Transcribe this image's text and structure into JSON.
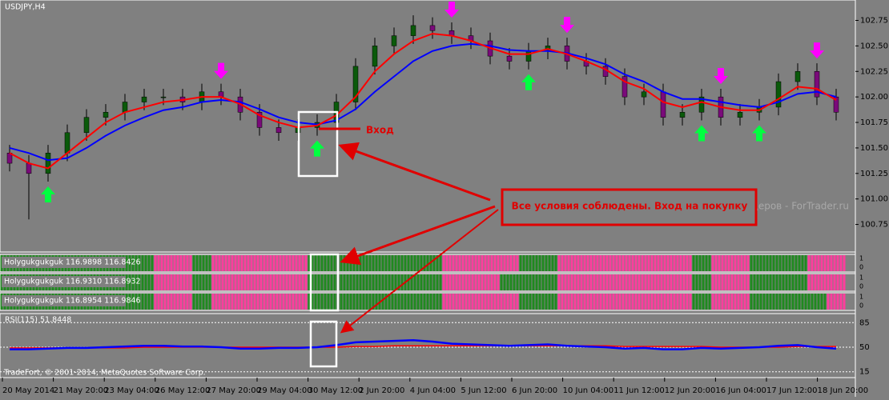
{
  "chart_data": {
    "type": "candlestick",
    "title": "USDJPY,H4",
    "ylim": [
      100.48,
      102.95
    ],
    "yticks": [
      {
        "value": 102.75,
        "label": "102.75"
      },
      {
        "value": 102.5,
        "label": "102.50"
      },
      {
        "value": 102.25,
        "label": "102.25"
      },
      {
        "value": 102.0,
        "label": "102.00"
      },
      {
        "value": 101.75,
        "label": "101.75"
      },
      {
        "value": 101.5,
        "label": "101.50"
      },
      {
        "value": 101.25,
        "label": "101.25"
      },
      {
        "value": 101.0,
        "label": "101.00"
      },
      {
        "value": 100.75,
        "label": "100.75"
      }
    ],
    "candles": {
      "open": [
        101.45,
        101.35,
        101.25,
        101.45,
        101.65,
        101.8,
        101.85,
        101.95,
        102.0,
        102.0,
        101.95,
        102.05,
        102.0,
        101.85,
        101.7,
        101.65,
        101.7,
        101.75,
        101.95,
        102.3,
        102.5,
        102.6,
        102.7,
        102.65,
        102.6,
        102.55,
        102.4,
        102.35,
        102.45,
        102.5,
        102.35,
        102.3,
        102.2,
        102.0,
        102.05,
        101.8,
        101.85,
        102.0,
        101.8,
        101.85,
        101.9,
        102.15,
        102.25,
        102.0
      ],
      "high": [
        101.53,
        101.43,
        101.53,
        101.73,
        101.88,
        101.93,
        102.03,
        102.08,
        102.08,
        102.08,
        102.13,
        102.13,
        102.08,
        101.93,
        101.78,
        101.78,
        101.83,
        102.03,
        102.38,
        102.58,
        102.68,
        102.8,
        102.78,
        102.73,
        102.68,
        102.63,
        102.48,
        102.53,
        102.58,
        102.58,
        102.43,
        102.38,
        102.28,
        102.13,
        102.13,
        101.93,
        102.08,
        102.08,
        101.93,
        101.98,
        102.23,
        102.33,
        102.33,
        102.08
      ],
      "low": [
        101.27,
        100.8,
        101.17,
        101.37,
        101.57,
        101.72,
        101.77,
        101.87,
        101.92,
        101.87,
        101.87,
        101.92,
        101.77,
        101.62,
        101.57,
        101.57,
        101.62,
        101.67,
        101.87,
        102.22,
        102.42,
        102.52,
        102.57,
        102.52,
        102.47,
        102.32,
        102.27,
        102.27,
        102.37,
        102.27,
        102.22,
        102.12,
        101.92,
        101.92,
        101.72,
        101.72,
        101.77,
        101.72,
        101.72,
        101.77,
        101.82,
        102.07,
        101.92,
        101.77
      ],
      "close": [
        101.35,
        101.25,
        101.45,
        101.65,
        101.8,
        101.85,
        101.95,
        102.0,
        102.0,
        101.95,
        102.05,
        102.0,
        101.85,
        101.7,
        101.65,
        101.7,
        101.75,
        101.95,
        102.3,
        102.5,
        102.6,
        102.7,
        102.65,
        102.6,
        102.55,
        102.4,
        102.35,
        102.45,
        102.5,
        102.35,
        102.3,
        102.2,
        102.0,
        102.05,
        101.8,
        101.85,
        102.0,
        101.8,
        101.85,
        101.9,
        102.15,
        102.25,
        102.0,
        101.85
      ]
    },
    "bull_color": "#0a5a0a",
    "bear_color": "#7a0a7a",
    "ma_fast": {
      "color": "#ff0000",
      "values": [
        101.45,
        101.35,
        101.3,
        101.45,
        101.6,
        101.75,
        101.85,
        101.9,
        101.95,
        101.97,
        102.0,
        102.0,
        101.93,
        101.82,
        101.75,
        101.7,
        101.72,
        101.82,
        102.0,
        102.25,
        102.42,
        102.55,
        102.62,
        102.6,
        102.55,
        102.48,
        102.42,
        102.42,
        102.47,
        102.42,
        102.35,
        102.27,
        102.15,
        102.08,
        101.95,
        101.9,
        101.95,
        101.9,
        101.87,
        101.87,
        101.98,
        102.1,
        102.08,
        101.97
      ]
    },
    "ma_slow": {
      "color": "#0000ff",
      "values": [
        101.5,
        101.45,
        101.38,
        101.4,
        101.5,
        101.62,
        101.72,
        101.8,
        101.87,
        101.9,
        101.95,
        101.97,
        101.95,
        101.88,
        101.8,
        101.75,
        101.73,
        101.77,
        101.88,
        102.05,
        102.2,
        102.35,
        102.45,
        102.5,
        102.52,
        102.5,
        102.46,
        102.45,
        102.45,
        102.43,
        102.38,
        102.32,
        102.22,
        102.15,
        102.05,
        101.98,
        101.98,
        101.95,
        101.92,
        101.9,
        101.95,
        102.03,
        102.05,
        102.0
      ]
    },
    "buy_signals": [
      2,
      16,
      27,
      36,
      39
    ],
    "sell_signals": [
      11,
      23,
      29,
      37,
      42
    ],
    "buy_color": "#00ff40",
    "sell_color": "#ff00ff",
    "x_labels": [
      "20 May 2014",
      "21 May 20:00",
      "23 May 04:00",
      "26 May 12:00",
      "27 May 20:00",
      "29 May 04:00",
      "30 May 12:00",
      "2 Jun 20:00",
      "4 Jun 04:00",
      "5 Jun 12:00",
      "6 Jun 20:00",
      "10 Jun 04:00",
      "11 Jun 12:00",
      "12 Jun 20:00",
      "16 Jun 04:00",
      "17 Jun 12:00",
      "18 Jun 20:00"
    ],
    "annotations": {
      "entry": "Вход",
      "conditions": "Все условия соблюдены. Вход на покупку"
    },
    "watermark": "деров - ForTrader.ru",
    "copyright": "TradeFort, © 2001-2014, MetaQuotes Software Corp."
  },
  "indicator_panels": [
    {
      "label": "Holygukgukguk 116.9898 116.8426",
      "yticks": [
        1,
        0
      ],
      "states": [
        1,
        1,
        1,
        1,
        1,
        1,
        1,
        1,
        0,
        0,
        1,
        0,
        0,
        0,
        0,
        0,
        1,
        1,
        1,
        1,
        1,
        1,
        1,
        0,
        0,
        0,
        0,
        1,
        1,
        0,
        0,
        0,
        0,
        0,
        0,
        0,
        1,
        0,
        0,
        1,
        1,
        1,
        0,
        0
      ]
    },
    {
      "label": "Holygukgukguk 116.9310 116.8932",
      "yticks": [
        1,
        0
      ],
      "states": [
        1,
        1,
        1,
        1,
        1,
        1,
        1,
        1,
        0,
        0,
        1,
        0,
        0,
        0,
        0,
        0,
        1,
        1,
        1,
        1,
        1,
        1,
        1,
        0,
        0,
        0,
        1,
        1,
        1,
        0,
        0,
        0,
        0,
        0,
        0,
        0,
        1,
        0,
        0,
        1,
        1,
        1,
        0,
        0
      ]
    },
    {
      "label": "Holygukgukguk 116.8954 116.9846",
      "yticks": [
        1,
        0
      ],
      "states": [
        1,
        1,
        1,
        1,
        1,
        1,
        1,
        1,
        0,
        0,
        1,
        0,
        0,
        0,
        0,
        0,
        1,
        1,
        1,
        1,
        1,
        1,
        1,
        0,
        0,
        0,
        0,
        1,
        1,
        0,
        0,
        0,
        0,
        0,
        0,
        0,
        1,
        0,
        0,
        1,
        1,
        1,
        1,
        0
      ]
    }
  ],
  "indicator_colors": {
    "up": "#1f8a1f",
    "down": "#ff3d9e"
  },
  "rsi": {
    "label": "RSI(115) 51.8448",
    "ylim": [
      9,
      91
    ],
    "yticks": [
      85,
      50,
      15
    ],
    "color": "#0000ff",
    "values": [
      47,
      47,
      48,
      49,
      49,
      50,
      51,
      52,
      52,
      51,
      51,
      50,
      48,
      48,
      49,
      49,
      50,
      53,
      57,
      58,
      59,
      60,
      58,
      55,
      54,
      53,
      52,
      53,
      54,
      52,
      51,
      50,
      48,
      49,
      47,
      47,
      49,
      48,
      49,
      50,
      52,
      53,
      50,
      48
    ],
    "signal": {
      "color": "#ff0000",
      "values": [
        49,
        49,
        49,
        49,
        49,
        49,
        49,
        50,
        50,
        50,
        50,
        50,
        50,
        50,
        50,
        50,
        50,
        50,
        51,
        51,
        52,
        52,
        52,
        52,
        52,
        52,
        52,
        52,
        52,
        52,
        52,
        52,
        51,
        51,
        51,
        51,
        51,
        50,
        50,
        50,
        50,
        51,
        51,
        51
      ]
    }
  }
}
